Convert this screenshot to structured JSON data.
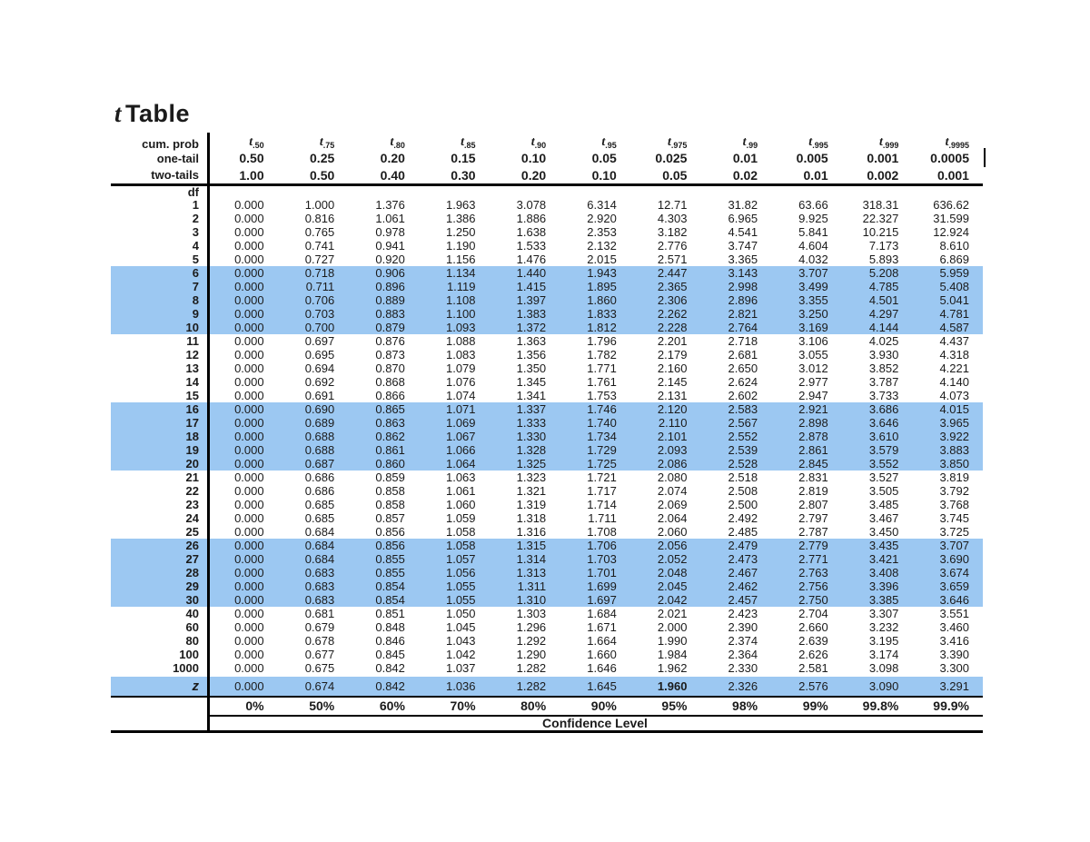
{
  "title": "t Table",
  "header": {
    "cum_prob_label": "cum. prob",
    "one_tail_label": "one-tail",
    "two_tails_label": "two-tails",
    "df_label": "df",
    "t_base": "t",
    "t_subscripts": [
      ".50",
      ".75",
      ".80",
      ".85",
      ".90",
      ".95",
      ".975",
      ".99",
      ".995",
      ".999",
      ".9995"
    ],
    "one_tail": [
      "0.50",
      "0.25",
      "0.20",
      "0.15",
      "0.10",
      "0.05",
      "0.025",
      "0.01",
      "0.005",
      "0.001",
      "0.0005"
    ],
    "two_tails": [
      "1.00",
      "0.50",
      "0.40",
      "0.30",
      "0.20",
      "0.10",
      "0.05",
      "0.02",
      "0.01",
      "0.002",
      "0.001"
    ]
  },
  "colors": {
    "highlight": "#9CC8F2",
    "line": "#000000",
    "text": "#1B1B1B"
  },
  "chart_data": {
    "type": "table",
    "title": "t Table",
    "row_header": "df",
    "columns": [
      "t.50",
      "t.75",
      "t.80",
      "t.85",
      "t.90",
      "t.95",
      "t.975",
      "t.99",
      "t.995",
      "t.999",
      "t.9995"
    ],
    "highlight_dfs": [
      "6",
      "7",
      "8",
      "9",
      "10",
      "16",
      "17",
      "18",
      "19",
      "20",
      "26",
      "27",
      "28",
      "29",
      "30"
    ],
    "rows": [
      {
        "df": "1",
        "values": [
          "0.000",
          "1.000",
          "1.376",
          "1.963",
          "3.078",
          "6.314",
          "12.71",
          "31.82",
          "63.66",
          "318.31",
          "636.62"
        ]
      },
      {
        "df": "2",
        "values": [
          "0.000",
          "0.816",
          "1.061",
          "1.386",
          "1.886",
          "2.920",
          "4.303",
          "6.965",
          "9.925",
          "22.327",
          "31.599"
        ]
      },
      {
        "df": "3",
        "values": [
          "0.000",
          "0.765",
          "0.978",
          "1.250",
          "1.638",
          "2.353",
          "3.182",
          "4.541",
          "5.841",
          "10.215",
          "12.924"
        ]
      },
      {
        "df": "4",
        "values": [
          "0.000",
          "0.741",
          "0.941",
          "1.190",
          "1.533",
          "2.132",
          "2.776",
          "3.747",
          "4.604",
          "7.173",
          "8.610"
        ]
      },
      {
        "df": "5",
        "values": [
          "0.000",
          "0.727",
          "0.920",
          "1.156",
          "1.476",
          "2.015",
          "2.571",
          "3.365",
          "4.032",
          "5.893",
          "6.869"
        ]
      },
      {
        "df": "6",
        "values": [
          "0.000",
          "0.718",
          "0.906",
          "1.134",
          "1.440",
          "1.943",
          "2.447",
          "3.143",
          "3.707",
          "5.208",
          "5.959"
        ]
      },
      {
        "df": "7",
        "values": [
          "0.000",
          "0.711",
          "0.896",
          "1.119",
          "1.415",
          "1.895",
          "2.365",
          "2.998",
          "3.499",
          "4.785",
          "5.408"
        ]
      },
      {
        "df": "8",
        "values": [
          "0.000",
          "0.706",
          "0.889",
          "1.108",
          "1.397",
          "1.860",
          "2.306",
          "2.896",
          "3.355",
          "4.501",
          "5.041"
        ]
      },
      {
        "df": "9",
        "values": [
          "0.000",
          "0.703",
          "0.883",
          "1.100",
          "1.383",
          "1.833",
          "2.262",
          "2.821",
          "3.250",
          "4.297",
          "4.781"
        ]
      },
      {
        "df": "10",
        "values": [
          "0.000",
          "0.700",
          "0.879",
          "1.093",
          "1.372",
          "1.812",
          "2.228",
          "2.764",
          "3.169",
          "4.144",
          "4.587"
        ]
      },
      {
        "df": "11",
        "values": [
          "0.000",
          "0.697",
          "0.876",
          "1.088",
          "1.363",
          "1.796",
          "2.201",
          "2.718",
          "3.106",
          "4.025",
          "4.437"
        ]
      },
      {
        "df": "12",
        "values": [
          "0.000",
          "0.695",
          "0.873",
          "1.083",
          "1.356",
          "1.782",
          "2.179",
          "2.681",
          "3.055",
          "3.930",
          "4.318"
        ]
      },
      {
        "df": "13",
        "values": [
          "0.000",
          "0.694",
          "0.870",
          "1.079",
          "1.350",
          "1.771",
          "2.160",
          "2.650",
          "3.012",
          "3.852",
          "4.221"
        ]
      },
      {
        "df": "14",
        "values": [
          "0.000",
          "0.692",
          "0.868",
          "1.076",
          "1.345",
          "1.761",
          "2.145",
          "2.624",
          "2.977",
          "3.787",
          "4.140"
        ]
      },
      {
        "df": "15",
        "values": [
          "0.000",
          "0.691",
          "0.866",
          "1.074",
          "1.341",
          "1.753",
          "2.131",
          "2.602",
          "2.947",
          "3.733",
          "4.073"
        ]
      },
      {
        "df": "16",
        "values": [
          "0.000",
          "0.690",
          "0.865",
          "1.071",
          "1.337",
          "1.746",
          "2.120",
          "2.583",
          "2.921",
          "3.686",
          "4.015"
        ]
      },
      {
        "df": "17",
        "values": [
          "0.000",
          "0.689",
          "0.863",
          "1.069",
          "1.333",
          "1.740",
          "2.110",
          "2.567",
          "2.898",
          "3.646",
          "3.965"
        ]
      },
      {
        "df": "18",
        "values": [
          "0.000",
          "0.688",
          "0.862",
          "1.067",
          "1.330",
          "1.734",
          "2.101",
          "2.552",
          "2.878",
          "3.610",
          "3.922"
        ]
      },
      {
        "df": "19",
        "values": [
          "0.000",
          "0.688",
          "0.861",
          "1.066",
          "1.328",
          "1.729",
          "2.093",
          "2.539",
          "2.861",
          "3.579",
          "3.883"
        ]
      },
      {
        "df": "20",
        "values": [
          "0.000",
          "0.687",
          "0.860",
          "1.064",
          "1.325",
          "1.725",
          "2.086",
          "2.528",
          "2.845",
          "3.552",
          "3.850"
        ]
      },
      {
        "df": "21",
        "values": [
          "0.000",
          "0.686",
          "0.859",
          "1.063",
          "1.323",
          "1.721",
          "2.080",
          "2.518",
          "2.831",
          "3.527",
          "3.819"
        ]
      },
      {
        "df": "22",
        "values": [
          "0.000",
          "0.686",
          "0.858",
          "1.061",
          "1.321",
          "1.717",
          "2.074",
          "2.508",
          "2.819",
          "3.505",
          "3.792"
        ]
      },
      {
        "df": "23",
        "values": [
          "0.000",
          "0.685",
          "0.858",
          "1.060",
          "1.319",
          "1.714",
          "2.069",
          "2.500",
          "2.807",
          "3.485",
          "3.768"
        ]
      },
      {
        "df": "24",
        "values": [
          "0.000",
          "0.685",
          "0.857",
          "1.059",
          "1.318",
          "1.711",
          "2.064",
          "2.492",
          "2.797",
          "3.467",
          "3.745"
        ]
      },
      {
        "df": "25",
        "values": [
          "0.000",
          "0.684",
          "0.856",
          "1.058",
          "1.316",
          "1.708",
          "2.060",
          "2.485",
          "2.787",
          "3.450",
          "3.725"
        ]
      },
      {
        "df": "26",
        "values": [
          "0.000",
          "0.684",
          "0.856",
          "1.058",
          "1.315",
          "1.706",
          "2.056",
          "2.479",
          "2.779",
          "3.435",
          "3.707"
        ]
      },
      {
        "df": "27",
        "values": [
          "0.000",
          "0.684",
          "0.855",
          "1.057",
          "1.314",
          "1.703",
          "2.052",
          "2.473",
          "2.771",
          "3.421",
          "3.690"
        ]
      },
      {
        "df": "28",
        "values": [
          "0.000",
          "0.683",
          "0.855",
          "1.056",
          "1.313",
          "1.701",
          "2.048",
          "2.467",
          "2.763",
          "3.408",
          "3.674"
        ]
      },
      {
        "df": "29",
        "values": [
          "0.000",
          "0.683",
          "0.854",
          "1.055",
          "1.311",
          "1.699",
          "2.045",
          "2.462",
          "2.756",
          "3.396",
          "3.659"
        ]
      },
      {
        "df": "30",
        "values": [
          "0.000",
          "0.683",
          "0.854",
          "1.055",
          "1.310",
          "1.697",
          "2.042",
          "2.457",
          "2.750",
          "3.385",
          "3.646"
        ]
      },
      {
        "df": "40",
        "values": [
          "0.000",
          "0.681",
          "0.851",
          "1.050",
          "1.303",
          "1.684",
          "2.021",
          "2.423",
          "2.704",
          "3.307",
          "3.551"
        ]
      },
      {
        "df": "60",
        "values": [
          "0.000",
          "0.679",
          "0.848",
          "1.045",
          "1.296",
          "1.671",
          "2.000",
          "2.390",
          "2.660",
          "3.232",
          "3.460"
        ]
      },
      {
        "df": "80",
        "values": [
          "0.000",
          "0.678",
          "0.846",
          "1.043",
          "1.292",
          "1.664",
          "1.990",
          "2.374",
          "2.639",
          "3.195",
          "3.416"
        ]
      },
      {
        "df": "100",
        "values": [
          "0.000",
          "0.677",
          "0.845",
          "1.042",
          "1.290",
          "1.660",
          "1.984",
          "2.364",
          "2.626",
          "3.174",
          "3.390"
        ]
      },
      {
        "df": "1000",
        "values": [
          "0.000",
          "0.675",
          "0.842",
          "1.037",
          "1.282",
          "1.646",
          "1.962",
          "2.330",
          "2.581",
          "3.098",
          "3.300"
        ]
      }
    ],
    "z_row": {
      "label": "z",
      "values": [
        "0.000",
        "0.674",
        "0.842",
        "1.036",
        "1.282",
        "1.645",
        "1.960",
        "2.326",
        "2.576",
        "3.090",
        "3.291"
      ],
      "bold_value": "1.960"
    }
  },
  "footer": {
    "percents": [
      "0%",
      "50%",
      "60%",
      "70%",
      "80%",
      "90%",
      "95%",
      "98%",
      "99%",
      "99.8%",
      "99.9%"
    ],
    "confidence_label": "Confidence Level"
  }
}
